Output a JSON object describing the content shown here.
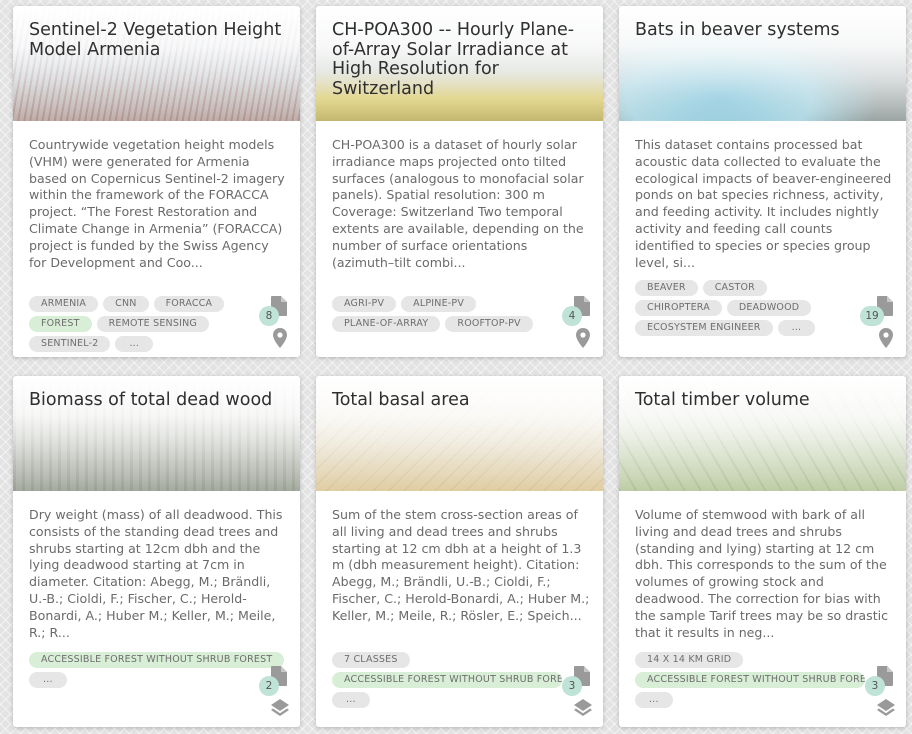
{
  "cards": [
    {
      "title": "Sentinel-2 Vegetation Height Model Armenia",
      "description": "Countrywide vegetation height models (VHM) were generated for Armenia based on Copernicus Sentinel-2 imagery within the framework of the FORACCA project. “The Forest Restoration and Climate Change in Armenia” (FORACCA) project is funded by the Swiss Agency for Development and Coo...",
      "tags": [
        "ARMENIA",
        "CNN",
        "FORACCA",
        "FOREST",
        "REMOTE SENSING",
        "SENTINEL-2",
        "..."
      ],
      "count": "8",
      "resource_icon": "document-icon",
      "type_icon": "map-pin-icon"
    },
    {
      "title": "CH-POA300 -- Hourly Plane-of-Array Solar Irradiance at High Resolution for Switzerland",
      "description": "CH-POA300 is a dataset of hourly solar irradiance maps projected onto tilted surfaces (analogous to monofacial solar panels). Spatial resolution: 300 m Coverage: Switzerland Two temporal extents are available, depending on the number of surface orientations (azimuth–tilt combi...",
      "tags": [
        "AGRI-PV",
        "ALPINE-PV",
        "PLANE-OF-ARRAY",
        "ROOFTOP-PV"
      ],
      "count": "4",
      "resource_icon": "document-icon",
      "type_icon": "map-pin-icon"
    },
    {
      "title": "Bats in beaver systems",
      "description": "This dataset contains processed bat acoustic data collected to evaluate the ecological impacts of beaver-engineered ponds on bat species richness, activity, and feeding activity. It includes nightly activity and feeding call counts identified to species or species group level, si...",
      "tags": [
        "BEAVER",
        "CASTOR",
        "CHIROPTERA",
        "DEADWOOD",
        "ECOSYSTEM ENGINEER",
        "..."
      ],
      "count": "19",
      "resource_icon": "document-icon",
      "type_icon": "map-pin-icon"
    },
    {
      "title": "Biomass of total dead wood",
      "description": "Dry weight (mass) of all deadwood. This consists of the standing dead trees and shrubs starting at 12cm dbh and the lying deadwood starting at 7cm in diameter. Citation: Abegg, M.; Brändli, U.-B.; Cioldi, F.; Fischer, C.; Herold-Bonardi, A.; Huber M.; Keller, M.; Meile, R.; R...",
      "tags": [
        "ACCESSIBLE FOREST WITHOUT SHRUB FOREST",
        "..."
      ],
      "count": "2",
      "resource_icon": "document-icon",
      "type_icon": "layers-icon"
    },
    {
      "title": "Total basal area",
      "description": "Sum of the stem cross-section areas of all living and dead trees and shrubs starting at 12 cm dbh at a height of 1.3 m (dbh measurement height). Citation: Abegg, M.; Brändli, U.-B.; Cioldi, F.; Fischer, C.; Herold-Bonardi, A.; Huber M.; Keller, M.; Meile, R.; Rösler, E.; Speich...",
      "tags": [
        "7 CLASSES",
        "ACCESSIBLE FOREST WITHOUT SHRUB FOREST",
        "..."
      ],
      "count": "3",
      "resource_icon": "document-icon",
      "type_icon": "layers-icon"
    },
    {
      "title": "Total timber volume",
      "description": "Volume of stemwood with bark of all living and dead trees and shrubs (standing and lying) starting at 12 cm dbh. This corresponds to the sum of the volumes of growing stock and deadwood. The correction for bias with the sample Tarif trees may be so drastic that it results in neg...",
      "tags": [
        "14 X 14 KM GRID",
        "ACCESSIBLE FOREST WITHOUT SHRUB FOREST",
        "..."
      ],
      "count": "3",
      "resource_icon": "document-icon",
      "type_icon": "layers-icon"
    }
  ],
  "colors": {
    "tag_default": "#e6e6e6",
    "tag_highlight": "#d8eed6",
    "count_badge": "#bfe3d6",
    "icon": "#9a9a9a"
  }
}
